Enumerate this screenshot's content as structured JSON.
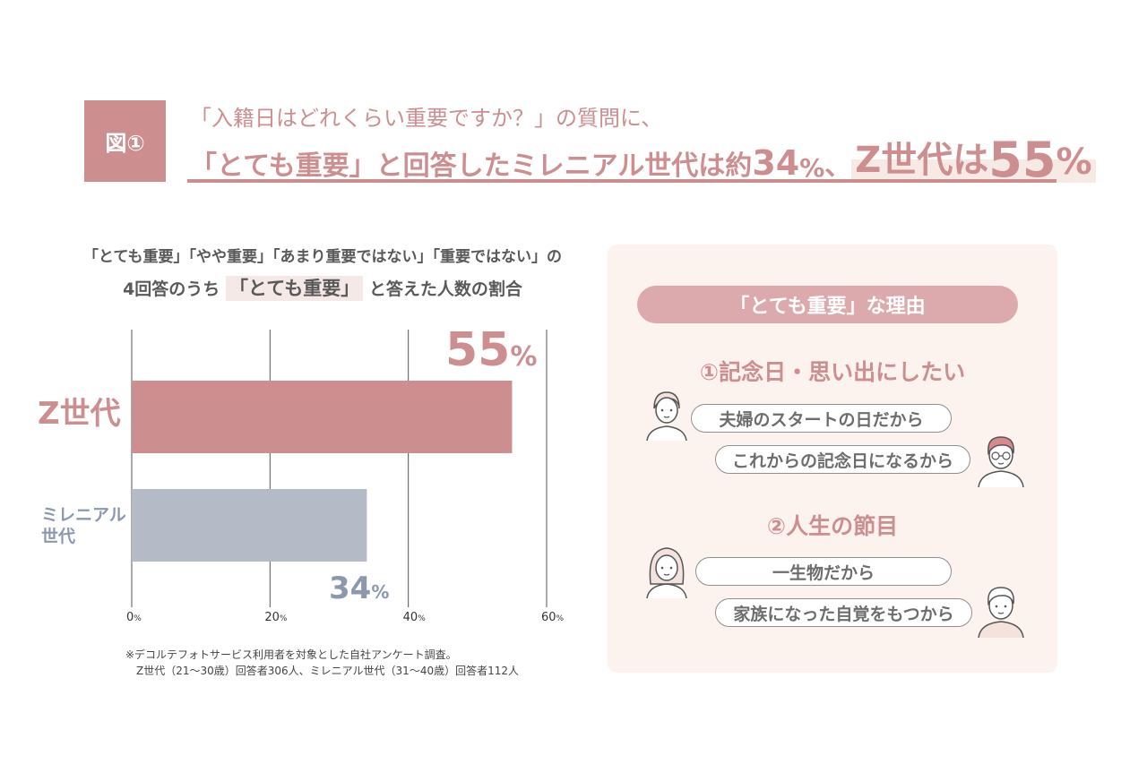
{
  "header": {
    "badge": "図①",
    "question": "「入籍日はどれくらい重要ですか？」の質問に、",
    "headline_part1": "「とても重要」と回答したミレニアル世代は約",
    "headline_millennial_num": "34",
    "headline_pct": "%",
    "headline_sep": "、",
    "headline_z_label": "Z世代は",
    "headline_z_num": "55",
    "headline_z_pct": "%"
  },
  "subtitle": {
    "line1": "「とても重要」「やや重要」「あまり重要ではない」「重要ではない」の",
    "line2_pre": "4回答のうち",
    "line2_highlight": "「とても重要」",
    "line2_post": "と答えた人数の割合"
  },
  "chart_data": {
    "type": "bar",
    "orientation": "horizontal",
    "categories": [
      "Z世代",
      "ミレニアル世代"
    ],
    "values": [
      55,
      34
    ],
    "value_labels": [
      "55",
      "34"
    ],
    "value_unit": "%",
    "xlim": [
      0,
      60
    ],
    "x_ticks": [
      "0",
      "20",
      "40",
      "60"
    ],
    "tick_unit": "%",
    "grid": true,
    "colors": {
      "z": "#cd8e90",
      "millennial": "#b4bac6",
      "z_label": "#cd8e90",
      "millennial_label": "#8b98ad"
    }
  },
  "footnote": {
    "line1": "※デコルテフォトサービス利用者を対象とした自社アンケート調査。",
    "line2": "Z世代（21〜30歳）回答者306人、ミレニアル世代（31〜40歳）回答者112人"
  },
  "reasons": {
    "title": "「とても重要」な理由",
    "items": [
      {
        "title": "①記念日・思い出にしたい",
        "comments": [
          "夫婦のスタートの日だから",
          "これからの記念日になるから"
        ]
      },
      {
        "title": "②人生の節目",
        "comments": [
          "一生物だから",
          "家族になった自覚をもつから"
        ]
      }
    ]
  },
  "colors": {
    "accent": "#cd8e90",
    "panel_bg": "#fcf3ef",
    "pill": "#dcaaad"
  }
}
